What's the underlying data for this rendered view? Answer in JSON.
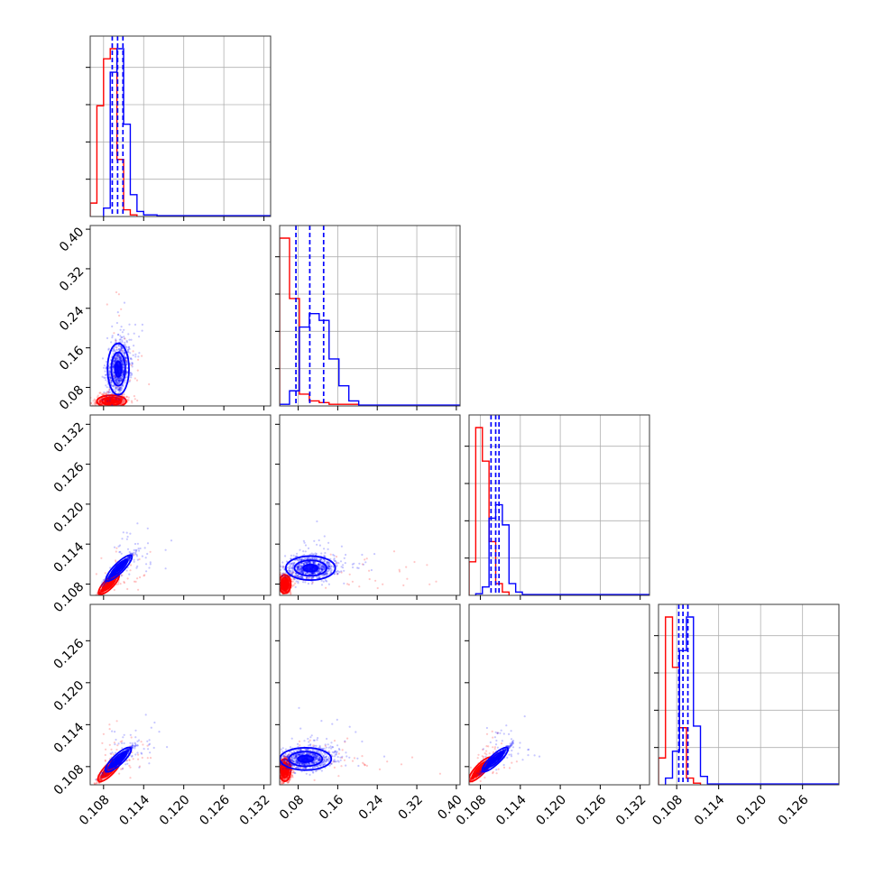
{
  "chart_data": {
    "type": "corner",
    "colors": {
      "red": "#ff0000",
      "blue": "#0000ff",
      "grid": "#b0b0b0"
    },
    "axes": {
      "p0": {
        "range": [
          0.106,
          0.133
        ],
        "ticks": [
          0.108,
          0.114,
          0.12,
          0.126,
          0.132
        ],
        "labels": [
          "0.108",
          "0.114",
          "0.120",
          "0.126",
          "0.132"
        ]
      },
      "p1": {
        "range": [
          0.0425,
          0.4075
        ],
        "ticks": [
          0.08,
          0.16,
          0.24,
          0.32,
          0.4
        ],
        "labels": [
          "0.08",
          "0.16",
          "0.24",
          "0.32",
          "0.40"
        ]
      },
      "p2": {
        "range": [
          0.1063,
          0.1334
        ],
        "ticks": [
          0.108,
          0.114,
          0.12,
          0.126,
          0.132
        ],
        "labels": [
          "0.108",
          "0.114",
          "0.120",
          "0.126",
          "0.132"
        ]
      },
      "p3": {
        "range": [
          0.1054,
          0.1312
        ],
        "ticks": [
          0.108,
          0.114,
          0.12,
          0.126
        ],
        "labels": [
          "0.108",
          "0.114",
          "0.120",
          "0.126"
        ]
      }
    },
    "histograms": [
      {
        "param": "p0",
        "red": {
          "edges": [
            0.106,
            0.107,
            0.108,
            0.109,
            0.11,
            0.111,
            0.112,
            0.113
          ],
          "heights": [
            0.08,
            0.66,
            0.94,
            1.0,
            0.34,
            0.04,
            0.01
          ]
        },
        "blue": {
          "edges": [
            0.108,
            0.109,
            0.11,
            0.111,
            0.112,
            0.113,
            0.114,
            0.116,
            0.133
          ],
          "heights": [
            0.05,
            0.86,
            1.0,
            0.55,
            0.13,
            0.03,
            0.01,
            0.005
          ]
        },
        "quantiles": [
          0.1093,
          0.1101,
          0.1109
        ]
      },
      {
        "param": "p1",
        "red": {
          "edges": [
            0.0425,
            0.0625,
            0.0825,
            0.1025,
            0.1225,
            0.1425,
            0.1625,
            0.2025,
            0.4075
          ],
          "heights": [
            1.0,
            0.64,
            0.07,
            0.03,
            0.02,
            0.01,
            0.01,
            0.003
          ]
        },
        "blue": {
          "edges": [
            0.0425,
            0.0625,
            0.0825,
            0.1025,
            0.1225,
            0.1425,
            0.1625,
            0.1825,
            0.2025,
            0.4075
          ],
          "heights": [
            0.01,
            0.09,
            0.47,
            0.55,
            0.51,
            0.28,
            0.12,
            0.03,
            0.005
          ]
        },
        "quantiles": [
          0.0755,
          0.1035,
          0.1315
        ]
      },
      {
        "param": "p2",
        "red": {
          "edges": [
            0.1063,
            0.1073,
            0.1083,
            0.1093,
            0.1103,
            0.1113,
            0.1123
          ],
          "heights": [
            0.2,
            1.0,
            0.8,
            0.32,
            0.07,
            0.02
          ]
        },
        "blue": {
          "edges": [
            0.1073,
            0.1083,
            0.1093,
            0.1103,
            0.1113,
            0.1123,
            0.1133,
            0.1143,
            0.1334
          ],
          "heights": [
            0.01,
            0.05,
            0.46,
            0.54,
            0.42,
            0.07,
            0.02,
            0.005
          ]
        },
        "quantiles": [
          0.1096,
          0.1103,
          0.1108
        ]
      },
      {
        "param": "p3",
        "red": {
          "edges": [
            0.1054,
            0.1064,
            0.1074,
            0.1084,
            0.1094,
            0.1104,
            0.1114
          ],
          "heights": [
            0.16,
            1.0,
            0.7,
            0.34,
            0.04,
            0.01
          ]
        },
        "blue": {
          "edges": [
            0.1064,
            0.1074,
            0.1084,
            0.1094,
            0.1104,
            0.1114,
            0.1124,
            0.1312
          ],
          "heights": [
            0.04,
            0.2,
            0.8,
            1.0,
            0.35,
            0.05,
            0.005
          ]
        },
        "quantiles": [
          0.1083,
          0.1089,
          0.1096
        ]
      }
    ],
    "panels_2d": [
      {
        "x": "p0",
        "y": "p1",
        "red": {
          "center": [
            0.1092,
            0.052
          ],
          "spread": [
            0.0011,
            0.006
          ],
          "rho": 0.1,
          "outlier_spread": [
            0.0022,
            0.09
          ]
        },
        "blue": {
          "center": [
            0.1102,
            0.117
          ],
          "spread": [
            0.0008,
            0.026
          ],
          "rho": 0.2,
          "outlier_spread": [
            0.0015,
            0.05
          ]
        }
      },
      {
        "x": "p0",
        "y": "p2",
        "red": {
          "center": [
            0.1088,
            0.108
          ],
          "spread": [
            0.0007,
            0.0007
          ],
          "rho": 0.96,
          "outlier_spread": [
            0.0025,
            0.0025
          ]
        },
        "blue": {
          "center": [
            0.1103,
            0.1104
          ],
          "spread": [
            0.0009,
            0.0009
          ],
          "rho": 0.97,
          "outlier_spread": [
            0.0028,
            0.0028
          ]
        }
      },
      {
        "x": "p1",
        "y": "p2",
        "red": {
          "center": [
            0.053,
            0.108
          ],
          "spread": [
            0.006,
            0.0007
          ],
          "rho": 0.1,
          "outlier_spread": [
            0.13,
            0.002
          ]
        },
        "blue": {
          "center": [
            0.105,
            0.1104
          ],
          "spread": [
            0.025,
            0.0009
          ],
          "rho": 0.1,
          "outlier_spread": [
            0.05,
            0.002
          ]
        }
      },
      {
        "x": "p0",
        "y": "p3",
        "red": {
          "center": [
            0.1089,
            0.1076
          ],
          "spread": [
            0.0008,
            0.0008
          ],
          "rho": 0.95,
          "outlier_spread": [
            0.0025,
            0.0025
          ]
        },
        "blue": {
          "center": [
            0.1102,
            0.109
          ],
          "spread": [
            0.0009,
            0.0008
          ],
          "rho": 0.96,
          "outlier_spread": [
            0.0028,
            0.0028
          ]
        }
      },
      {
        "x": "p1",
        "y": "p3",
        "red": {
          "center": [
            0.053,
            0.1075
          ],
          "spread": [
            0.006,
            0.0008
          ],
          "rho": 0.1,
          "outlier_spread": [
            0.13,
            0.002
          ]
        },
        "blue": {
          "center": [
            0.095,
            0.1091
          ],
          "spread": [
            0.026,
            0.0008
          ],
          "rho": 0.1,
          "outlier_spread": [
            0.05,
            0.002
          ]
        }
      },
      {
        "x": "p2",
        "y": "p3",
        "red": {
          "center": [
            0.108,
            0.1076
          ],
          "spread": [
            0.0008,
            0.0008
          ],
          "rho": 0.96,
          "outlier_spread": [
            0.0022,
            0.0022
          ]
        },
        "blue": {
          "center": [
            0.1102,
            0.109
          ],
          "spread": [
            0.0009,
            0.0008
          ],
          "rho": 0.97,
          "outlier_spread": [
            0.0025,
            0.0025
          ]
        }
      }
    ],
    "grid": true
  }
}
